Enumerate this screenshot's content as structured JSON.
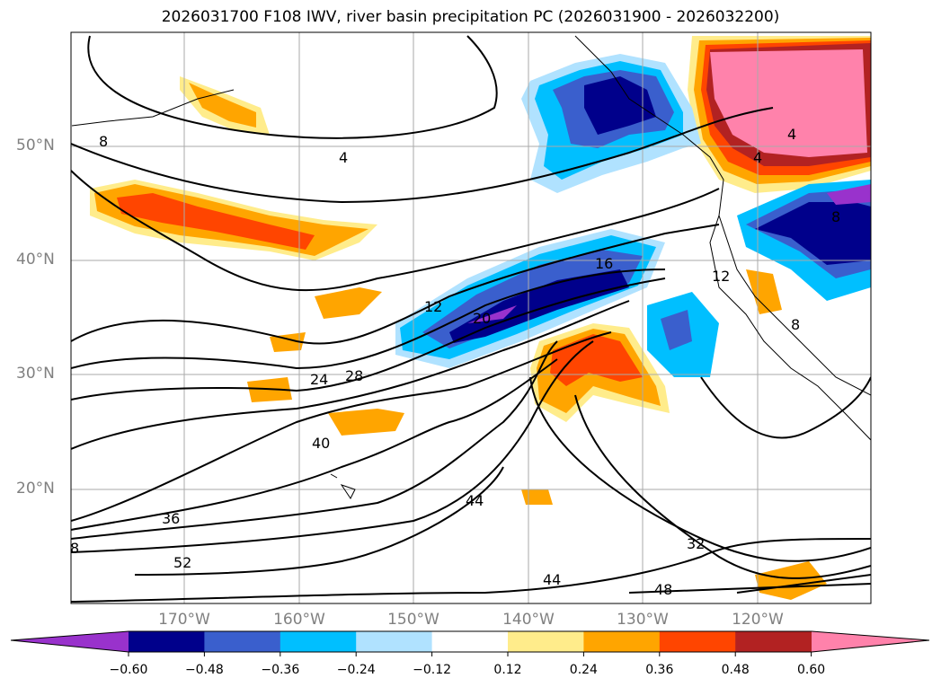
{
  "title": "2026031700 F108 IWV, river basin precipitation PC (2026031900 - 2026032200)",
  "map": {
    "lat_labels": [
      "50°N",
      "40°N",
      "30°N",
      "20°N"
    ],
    "lon_labels": [
      "170°W",
      "160°W",
      "150°W",
      "140°W",
      "130°W",
      "120°W"
    ],
    "contour_labels": [
      "4",
      "4",
      "4",
      "8",
      "8",
      "8",
      "12",
      "12",
      "16",
      "20",
      "24",
      "28",
      "32",
      "36",
      "40",
      "44",
      "44",
      "48",
      "52",
      "8"
    ]
  },
  "colorbar": {
    "colors": [
      "#9932CC",
      "#00008B",
      "#3A5FCD",
      "#00BFFF",
      "#B0E2FF",
      "#FFFFFF",
      "#FFEC8B",
      "#FFA500",
      "#FF4500",
      "#B22222",
      "#FF82AB"
    ],
    "tick_labels": [
      "−0.60",
      "−0.48",
      "−0.36",
      "−0.24",
      "−0.12",
      "0.12",
      "0.24",
      "0.36",
      "0.48",
      "0.60"
    ]
  }
}
